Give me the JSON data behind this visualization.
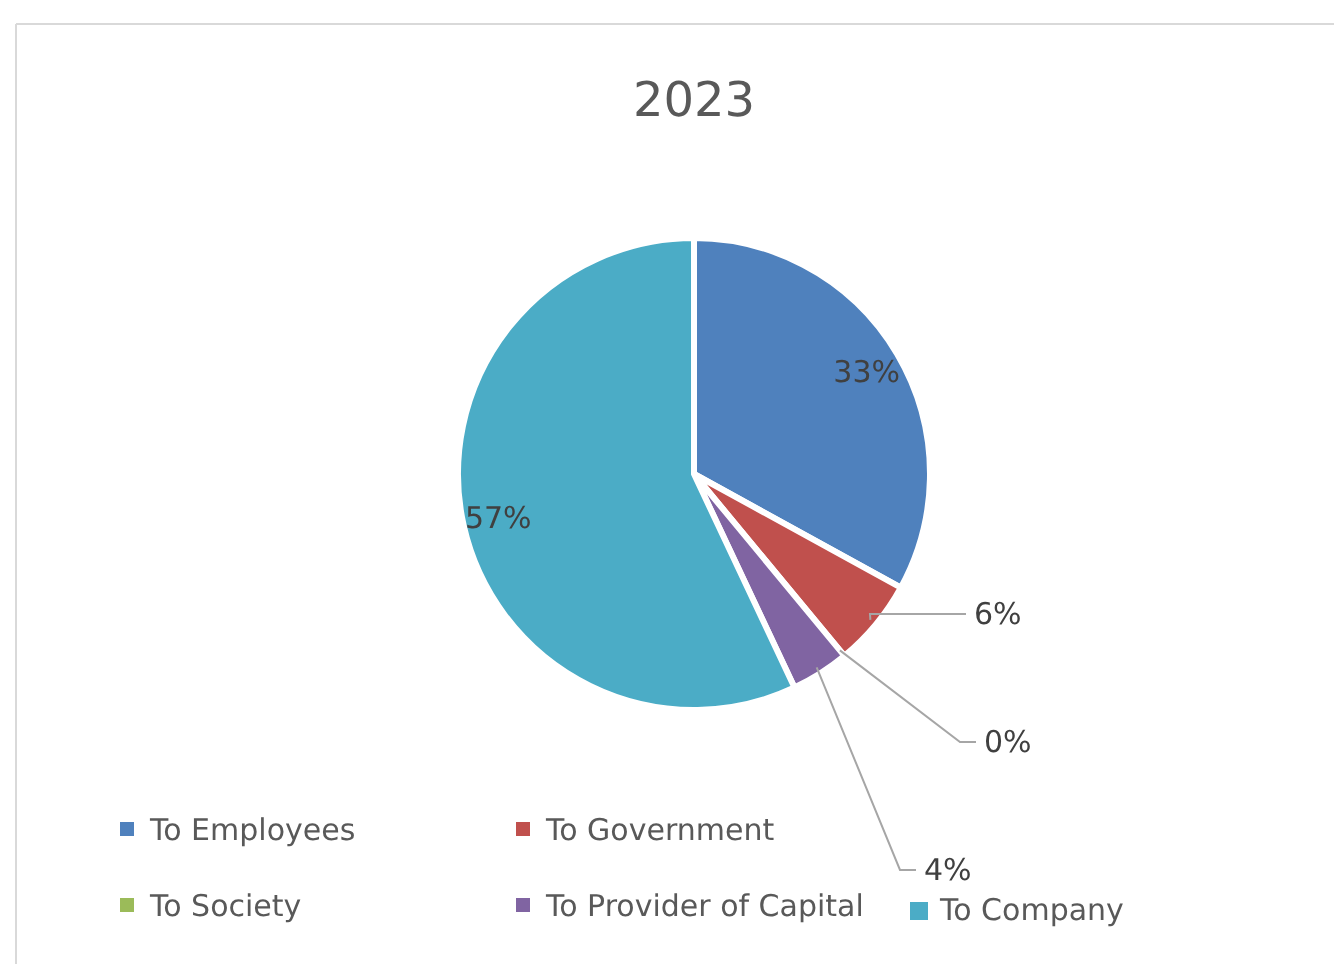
{
  "chart_data": {
    "type": "pie",
    "title": "2023",
    "categories": [
      "To Employees",
      "To Government",
      "To Society",
      "To Provider of Capital",
      "To Company"
    ],
    "values": [
      33,
      6,
      0,
      4,
      57
    ],
    "colors": [
      "#4f81bd",
      "#c0504d",
      "#9bbb59",
      "#8064a2",
      "#4bacc6"
    ],
    "value_labels": [
      "33%",
      "6%",
      "0%",
      "4%",
      "57%"
    ],
    "legend": "bottom"
  }
}
